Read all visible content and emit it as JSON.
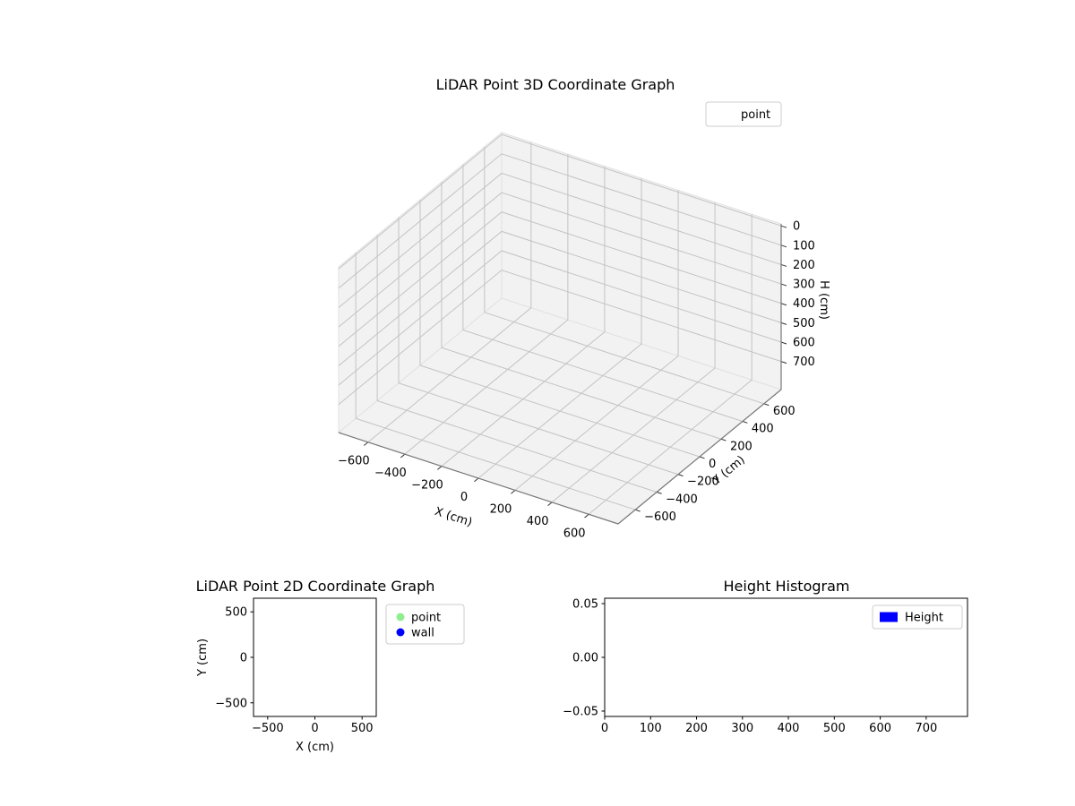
{
  "figure": {
    "background": "#ffffff"
  },
  "colors": {
    "pane": "#f2f2f2",
    "pane_edge": "#e1e1e1",
    "grid": "#c3c3c3",
    "axis_line": "#787878",
    "tick": "#333333",
    "spine": "#000000",
    "legend_border": "#cccccc",
    "text": "#000000"
  },
  "chart_data": [
    {
      "type": "scatter3d",
      "title": "LiDAR Point 3D Coordinate Graph",
      "xlabel": "X (cm)",
      "ylabel": "Y (cm)",
      "zlabel": "H (cm)",
      "xlim": [
        -760,
        760
      ],
      "ylim": [
        -760,
        760
      ],
      "zlim": [
        -10,
        845
      ],
      "z_axis_inverted": true,
      "grid": true,
      "x_ticks": {
        "values": [
          -600,
          -400,
          -200,
          0,
          200,
          400,
          600
        ],
        "labels": [
          "−600",
          "−400",
          "−200",
          "0",
          "200",
          "400",
          "600"
        ]
      },
      "y_ticks": {
        "values": [
          -600,
          -400,
          -200,
          0,
          200,
          400,
          600
        ],
        "labels": [
          "−600",
          "−400",
          "−200",
          "0",
          "200",
          "400",
          "600"
        ]
      },
      "z_ticks": {
        "values": [
          0,
          100,
          200,
          300,
          400,
          500,
          600,
          700
        ],
        "labels": [
          "0",
          "100",
          "200",
          "300",
          "400",
          "500",
          "600",
          "700"
        ]
      },
      "legend": {
        "position": "upper right",
        "entries": [
          {
            "label": "point",
            "marker": "none"
          }
        ]
      },
      "series": [
        {
          "name": "point",
          "points": []
        }
      ]
    },
    {
      "type": "scatter",
      "title": "LiDAR Point 2D Coordinate Graph",
      "xlabel": "X (cm)",
      "ylabel": "Y (cm)",
      "xlim": [
        -650,
        650
      ],
      "ylim": [
        -650,
        650
      ],
      "grid": false,
      "x_ticks": {
        "values": [
          -500,
          0,
          500
        ],
        "labels": [
          "−500",
          "0",
          "500"
        ]
      },
      "y_ticks": {
        "values": [
          -500,
          0,
          500
        ],
        "labels": [
          "−500",
          "0",
          "500"
        ]
      },
      "legend": {
        "position": "outside right",
        "entries": [
          {
            "label": "point",
            "color": "#90ee90"
          },
          {
            "label": "wall",
            "color": "#0000ff"
          }
        ]
      },
      "series": [
        {
          "name": "point",
          "color": "#90ee90",
          "points": []
        },
        {
          "name": "wall",
          "color": "#0000ff",
          "points": []
        }
      ]
    },
    {
      "type": "bar",
      "title": "Height Histogram",
      "xlabel": "",
      "ylabel": "",
      "xlim": [
        0,
        790
      ],
      "ylim": [
        -0.055,
        0.055
      ],
      "grid": false,
      "x_ticks": {
        "values": [
          0,
          100,
          200,
          300,
          400,
          500,
          600,
          700
        ],
        "labels": [
          "0",
          "100",
          "200",
          "300",
          "400",
          "500",
          "600",
          "700"
        ]
      },
      "y_ticks": {
        "values": [
          -0.05,
          0,
          0.05
        ],
        "labels": [
          "−0.05",
          "0.00",
          "0.05"
        ]
      },
      "legend": {
        "position": "upper right",
        "entries": [
          {
            "label": "Height",
            "color": "#0000ff"
          }
        ]
      },
      "values": []
    }
  ]
}
